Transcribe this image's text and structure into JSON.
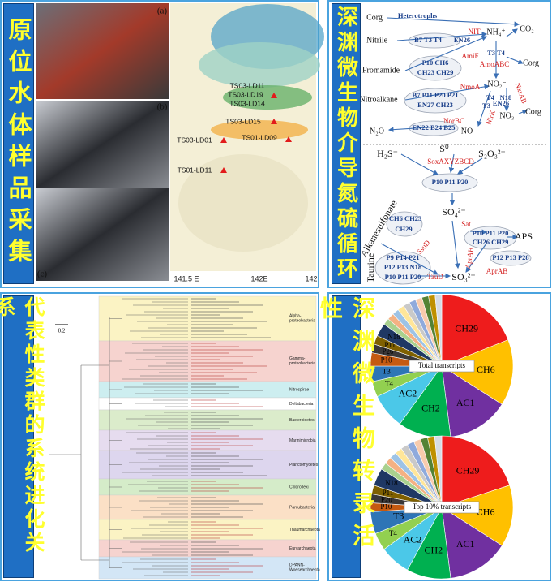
{
  "panels": [
    {
      "label": "原位水体样品采集",
      "photo_labels": [
        "(a)",
        "(b)",
        "(c)"
      ],
      "map": {
        "stations": [
          "TS03-LD11",
          "TS03-LD19",
          "TS03-LD14",
          "TS03-LD15",
          "TS03-LD01",
          "TS01-LD09",
          "TS01-LD11"
        ],
        "axis_labels": [
          "141.5 E",
          "142E",
          "142"
        ]
      }
    },
    {
      "label": "深渊微生物介导氮硫循环",
      "cycle_diagram": {
        "nitrogen": {
          "compounds": [
            "Corg",
            "CO₂",
            "Nitrile",
            "NH₄⁺",
            "Fromamide",
            "Corg",
            "NO₂⁻",
            "Nitroalkane",
            "NO₃⁻",
            "Corg",
            "N₂O",
            "NO"
          ],
          "taxa": [
            "Heterotrophs",
            "B7 T3 T4",
            "EN26",
            "P10 CH6",
            "CH23 CH29",
            "T3 T4",
            "B7 P11 P20 P21",
            "EN27 CH23",
            "T4",
            "T3",
            "EN26",
            "N18",
            "EN22 B24 B25"
          ],
          "enzymes": [
            "NIT",
            "AmiF",
            "AmoABC",
            "NmoA",
            "NirK",
            "NxrAB",
            "NorBC"
          ]
        },
        "sulfur": {
          "compounds": [
            "H₂S⁻",
            "S⁰",
            "S₂O₃²⁻",
            "SO₄²⁻",
            "Alkanesulfonate",
            "APS",
            "Taurine",
            "SO₃²⁻"
          ],
          "taxa": [
            "P10 P11 P20",
            "CH6 CH23",
            "CH29",
            "P10 P11 P20",
            "CH26 CH29",
            "P12 P13 P28",
            "P9 P14 P21",
            "P12 P13 N18",
            "P10 P11 P20"
          ],
          "enzymes": [
            "SoxAXYZBCD",
            "SsuD",
            "Sat",
            "AprAB",
            "AprAB",
            "TauD"
          ]
        },
        "enzyme_color": "#d42020",
        "compound_color": "#111111",
        "taxa_color": "#1a3f8a"
      }
    },
    {
      "label": "代表性类群的系统进化关系",
      "tree": {
        "scale": "0.2",
        "groups": [
          {
            "name": "Alpha-proteobacteria",
            "color": "#fbf3c4"
          },
          {
            "name": "Gamma-proteobacteria",
            "color": "#f6d3cf"
          },
          {
            "name": "Nitrospirae",
            "color": "#cdeef0"
          },
          {
            "name": "Deltabacteria",
            "color": "#ffffff"
          },
          {
            "name": "Bacteroidetes",
            "color": "#dbeccb"
          },
          {
            "name": "Marinimicrobia",
            "color": "#e6dcef"
          },
          {
            "name": "Planctomycetes",
            "color": "#ddd6ee"
          },
          {
            "name": "Chloroflexi",
            "color": "#d5ecc9"
          },
          {
            "name": "Parcubacteria",
            "color": "#fbe0c6"
          },
          {
            "name": "Thaumarchaeota",
            "color": "#fbf3c4"
          },
          {
            "name": "Euryarchaeota",
            "color": "#f6d3cf"
          },
          {
            "name": "DPANN-Woesearchaeota",
            "color": "#d3e6f6"
          }
        ]
      }
    },
    {
      "label": "深渊微生物转录活性"
    }
  ],
  "chart_data": [
    {
      "type": "pie",
      "title": "Total transcripts",
      "categories": [
        "CH29",
        "CH6",
        "AC1",
        "CH2",
        "AC2",
        "T4",
        "T3",
        "P10",
        "P20",
        "P11",
        "N18",
        null,
        null,
        null,
        null,
        null,
        null,
        null,
        null,
        null,
        null
      ],
      "values": [
        19,
        15,
        14,
        12,
        8,
        3.5,
        3.5,
        3,
        2,
        2,
        3,
        1.5,
        1.5,
        1.5,
        1.5,
        1.5,
        1.5,
        1.5,
        1.5,
        1.5,
        1.5
      ],
      "colors": [
        "#ee1c1c",
        "#ffc000",
        "#7030a0",
        "#00b050",
        "#4bc8e8",
        "#92d050",
        "#2e75b6",
        "#c55a11",
        "#3b3838",
        "#7f6000",
        "#1f3864",
        "#a9d18e",
        "#f4b183",
        "#9dc3e6",
        "#ffe699",
        "#c9c9c9",
        "#8faadc",
        "#f8cbad",
        "#548235",
        "#bf9000",
        "#d6dce5"
      ]
    },
    {
      "type": "pie",
      "title": "Top 10% transcripts",
      "categories": [
        "CH29",
        "CH6",
        "AC1",
        "CH2",
        "AC2",
        "T4",
        "T3",
        "P10",
        "P20",
        "P11",
        "N18",
        null,
        null,
        null,
        null,
        null,
        null,
        null,
        null,
        null,
        null
      ],
      "values": [
        20,
        14,
        14,
        10,
        7,
        4,
        5,
        2,
        2,
        2,
        4,
        1.6,
        1.6,
        1.6,
        1.6,
        1.6,
        1.6,
        1.6,
        1.6,
        1.6,
        1.6
      ],
      "colors": [
        "#ee1c1c",
        "#ffc000",
        "#7030a0",
        "#00b050",
        "#4bc8e8",
        "#92d050",
        "#2e75b6",
        "#c55a11",
        "#3b3838",
        "#7f6000",
        "#1f3864",
        "#a9d18e",
        "#f4b183",
        "#9dc3e6",
        "#ffe699",
        "#c9c9c9",
        "#8faadc",
        "#f8cbad",
        "#548235",
        "#bf9000",
        "#d6dce5"
      ]
    }
  ]
}
